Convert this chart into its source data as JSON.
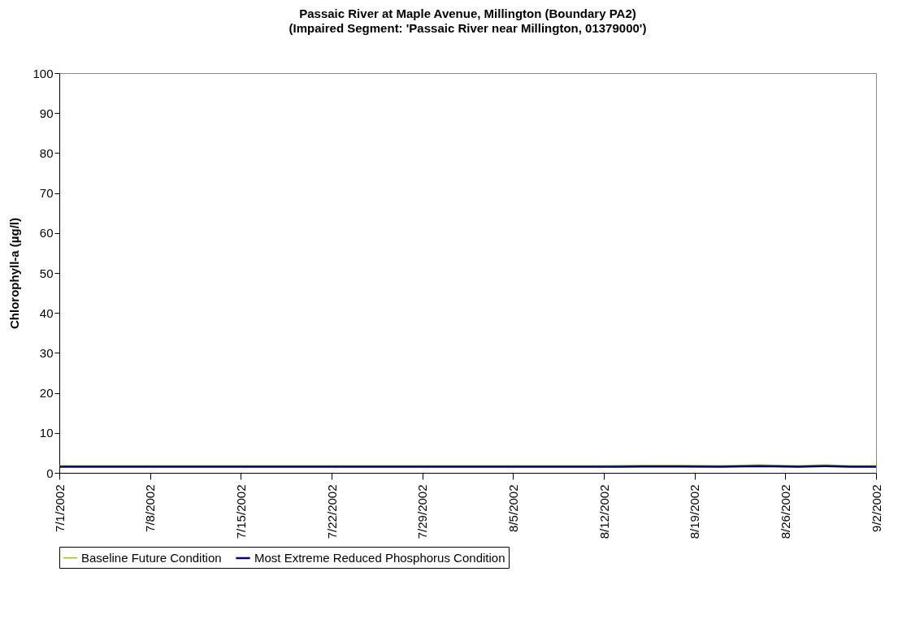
{
  "chart_data": {
    "type": "line",
    "title": "Passaic River at Maple Avenue, Millington (Boundary PA2)",
    "subtitle": "(Impaired Segment: 'Passaic River near Millington, 01379000')",
    "ylabel": "Chlorophyll-a (µg/l)",
    "x": [
      "2002-07-01",
      "2002-07-04",
      "2002-07-07",
      "2002-07-10",
      "2002-07-13",
      "2002-07-16",
      "2002-07-19",
      "2002-07-22",
      "2002-07-25",
      "2002-07-28",
      "2002-07-31",
      "2002-08-03",
      "2002-08-06",
      "2002-08-09",
      "2002-08-12",
      "2002-08-15",
      "2002-08-18",
      "2002-08-21",
      "2002-08-24",
      "2002-08-27",
      "2002-08-29",
      "2002-08-31",
      "2002-09-02"
    ],
    "series": [
      {
        "name": "Baseline Future Condition",
        "color": "#99cc00",
        "values": [
          1.8,
          1.8,
          1.8,
          1.8,
          1.8,
          1.8,
          1.8,
          1.8,
          1.8,
          1.8,
          1.8,
          1.8,
          1.8,
          1.8,
          1.8,
          1.9,
          1.9,
          1.8,
          2.0,
          1.8,
          2.0,
          1.8,
          1.8
        ]
      },
      {
        "name": "Most Extreme Reduced Phosphorus Condition",
        "color": "#000080",
        "values": [
          1.5,
          1.5,
          1.5,
          1.5,
          1.5,
          1.5,
          1.5,
          1.5,
          1.5,
          1.5,
          1.5,
          1.5,
          1.5,
          1.5,
          1.5,
          1.6,
          1.6,
          1.5,
          1.7,
          1.5,
          1.7,
          1.5,
          1.5
        ]
      }
    ],
    "xlim": [
      "2002-07-01",
      "2002-09-02"
    ],
    "xticks": [
      {
        "value": "2002-07-01",
        "label": "7/1/2002"
      },
      {
        "value": "2002-07-08",
        "label": "7/8/2002"
      },
      {
        "value": "2002-07-15",
        "label": "7/15/2002"
      },
      {
        "value": "2002-07-22",
        "label": "7/22/2002"
      },
      {
        "value": "2002-07-29",
        "label": "7/29/2002"
      },
      {
        "value": "2002-08-05",
        "label": "8/5/2002"
      },
      {
        "value": "2002-08-12",
        "label": "8/12/2002"
      },
      {
        "value": "2002-08-19",
        "label": "8/19/2002"
      },
      {
        "value": "2002-08-26",
        "label": "8/26/2002"
      },
      {
        "value": "2002-09-02",
        "label": "9/2/2002"
      }
    ],
    "ylim": [
      0,
      100
    ],
    "yticks": [
      0,
      10,
      20,
      30,
      40,
      50,
      60,
      70,
      80,
      90,
      100
    ],
    "grid": false,
    "legend": "bottom",
    "marker": "none",
    "line_style": "solid"
  }
}
